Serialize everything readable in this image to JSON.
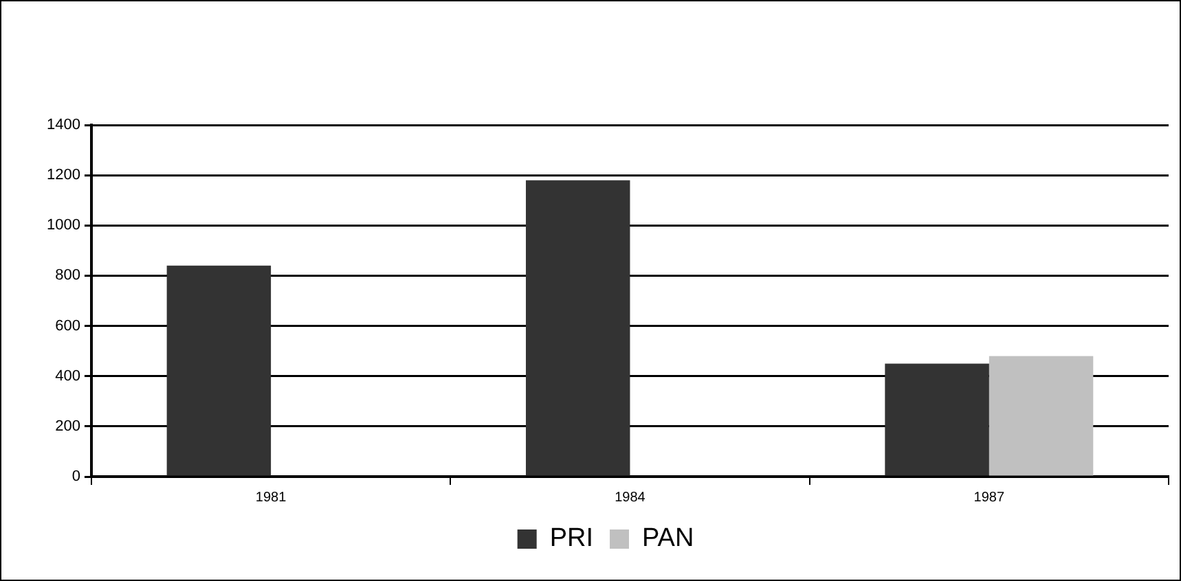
{
  "chart_data": {
    "type": "bar",
    "categories": [
      "1981",
      "1984",
      "1987"
    ],
    "series": [
      {
        "name": "PRI",
        "color": "#333333",
        "values": [
          840,
          1180,
          450
        ]
      },
      {
        "name": "PAN",
        "color": "#c0c0c0",
        "values": [
          null,
          null,
          480
        ]
      }
    ],
    "ylim": [
      0,
      1400
    ],
    "yticks": [
      0,
      200,
      400,
      600,
      800,
      1000,
      1200,
      1400
    ],
    "grid": "y",
    "legend": "bottom"
  }
}
